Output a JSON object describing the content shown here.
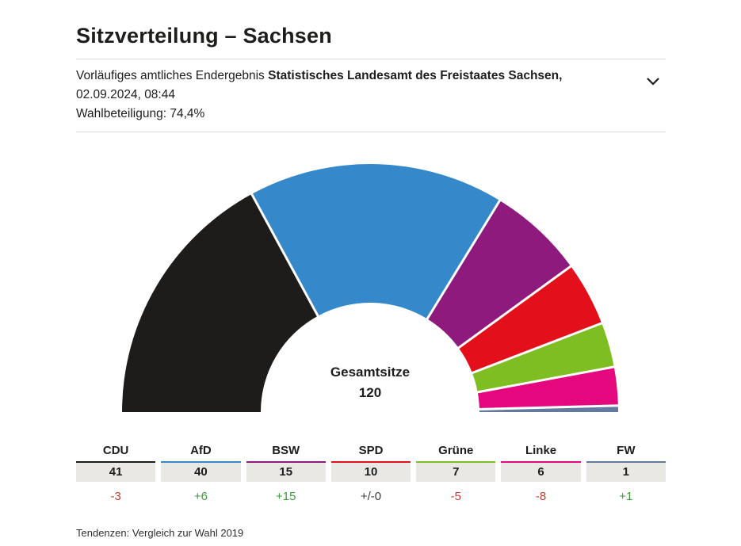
{
  "header": {
    "title": "Sitzverteilung – Sachsen",
    "status_prefix": "Vorläufiges amtliches Endergebnis ",
    "source_bold": "Statistisches Landesamt des Freistaates Sachsen,",
    "source_datetime": " 02.09.2024, 08:44",
    "turnout": "Wahlbeteiligung: 74,4%"
  },
  "chart_data": {
    "type": "half-donut",
    "center_label": "Gesamtsitze",
    "total_seats": 120,
    "gap_color": "#ffffff",
    "parties": [
      {
        "name": "CDU",
        "seats": 41,
        "trend": "-3",
        "color": "#1d1c1a",
        "trend_color": "#c43c33"
      },
      {
        "name": "AfD",
        "seats": 40,
        "trend": "+6",
        "color": "#3589cb",
        "trend_color": "#3f9b3b"
      },
      {
        "name": "BSW",
        "seats": 15,
        "trend": "+15",
        "color": "#8e1a7d",
        "trend_color": "#3f9b3b"
      },
      {
        "name": "SPD",
        "seats": 10,
        "trend": "+/-0",
        "color": "#e3101b",
        "trend_color": "#3c3c3c"
      },
      {
        "name": "Grüne",
        "seats": 7,
        "trend": "-5",
        "color": "#7fbe23",
        "trend_color": "#c43c33"
      },
      {
        "name": "Linke",
        "seats": 6,
        "trend": "-8",
        "color": "#e5077e",
        "trend_color": "#c43c33"
      },
      {
        "name": "FW",
        "seats": 1,
        "trend": "+1",
        "color": "#64799e",
        "trend_color": "#3f9b3b"
      }
    ]
  },
  "footer": {
    "note": "Tendenzen: Vergleich zur Wahl 2019"
  }
}
